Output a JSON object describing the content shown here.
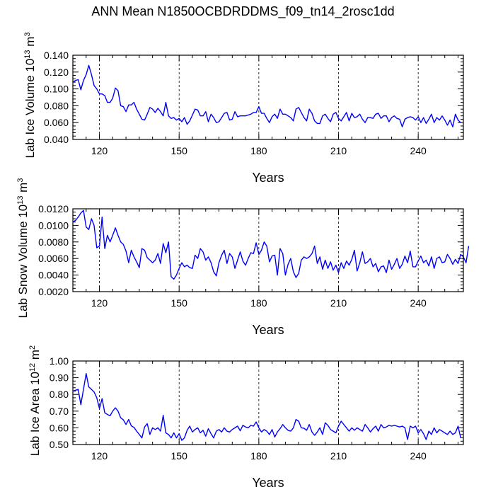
{
  "title": "ANN Mean N1850OCBDRDDMS_f09_tn14_2rosc1dd",
  "colors": {
    "line": "#0000ff",
    "frame": "#000000",
    "grid": "#000000"
  },
  "chart_data": [
    {
      "type": "line",
      "ylabel_main": "Lab Ice Volume 10",
      "ylabel_exp": "13",
      "ylabel_unit": "m",
      "ylabel_unit_exp": "3",
      "xlabel": "Years",
      "xlim": [
        110,
        257
      ],
      "ylim": [
        0.04,
        0.14
      ],
      "xticks": [
        120,
        150,
        180,
        210,
        240
      ],
      "xtick_labels": [
        "120",
        "150",
        "180",
        "210",
        "240"
      ],
      "yticks": [
        0.04,
        0.06,
        0.08,
        0.1,
        0.12,
        0.14
      ],
      "ytick_labels": [
        "0.040",
        "0.060",
        "0.080",
        "0.100",
        "0.120",
        "0.140"
      ],
      "grid": "vertical dashed at major x ticks",
      "series": [
        {
          "name": "Lab Ice Volume",
          "x_start": 110,
          "x_step": 1,
          "values": [
            0.108,
            0.11,
            0.111,
            0.099,
            0.11,
            0.117,
            0.128,
            0.117,
            0.104,
            0.1,
            0.094,
            0.094,
            0.092,
            0.084,
            0.084,
            0.089,
            0.101,
            0.098,
            0.08,
            0.079,
            0.073,
            0.081,
            0.081,
            0.084,
            0.076,
            0.07,
            0.064,
            0.063,
            0.07,
            0.078,
            0.076,
            0.072,
            0.077,
            0.073,
            0.068,
            0.084,
            0.068,
            0.065,
            0.066,
            0.063,
            0.065,
            0.061,
            0.066,
            0.058,
            0.062,
            0.069,
            0.076,
            0.075,
            0.068,
            0.068,
            0.073,
            0.061,
            0.07,
            0.066,
            0.06,
            0.061,
            0.066,
            0.071,
            0.072,
            0.063,
            0.064,
            0.073,
            0.067,
            0.068,
            0.068,
            0.068,
            0.069,
            0.07,
            0.072,
            0.072,
            0.079,
            0.071,
            0.071,
            0.065,
            0.06,
            0.067,
            0.07,
            0.065,
            0.076,
            0.07,
            0.07,
            0.068,
            0.066,
            0.062,
            0.076,
            0.078,
            0.072,
            0.066,
            0.062,
            0.076,
            0.071,
            0.062,
            0.059,
            0.059,
            0.068,
            0.07,
            0.065,
            0.061,
            0.07,
            0.072,
            0.065,
            0.062,
            0.067,
            0.072,
            0.062,
            0.071,
            0.066,
            0.067,
            0.07,
            0.064,
            0.06,
            0.066,
            0.066,
            0.065,
            0.07,
            0.071,
            0.065,
            0.068,
            0.068,
            0.061,
            0.066,
            0.068,
            0.065,
            0.064,
            0.055,
            0.064,
            0.066,
            0.067,
            0.066,
            0.063,
            0.067,
            0.06,
            0.066,
            0.059,
            0.064,
            0.07,
            0.06,
            0.066,
            0.063,
            0.068,
            0.063,
            0.057,
            0.063,
            0.055,
            0.07,
            0.063,
            0.06
          ]
        }
      ]
    },
    {
      "type": "line",
      "ylabel_main": "Lab Snow Volume 10",
      "ylabel_exp": "13",
      "ylabel_unit": "m",
      "ylabel_unit_exp": "3",
      "xlabel": "Years",
      "xlim": [
        110,
        257
      ],
      "ylim": [
        0.002,
        0.012
      ],
      "xticks": [
        120,
        150,
        180,
        210,
        240
      ],
      "xtick_labels": [
        "120",
        "150",
        "180",
        "210",
        "240"
      ],
      "yticks": [
        0.002,
        0.004,
        0.006,
        0.008,
        0.01,
        0.012
      ],
      "ytick_labels": [
        "0.0020",
        "0.0040",
        "0.0060",
        "0.0080",
        "0.0100",
        "0.0120"
      ],
      "grid": "vertical dashed at major x ticks",
      "series": [
        {
          "name": "Lab Snow Volume",
          "x_start": 110,
          "x_step": 1,
          "values": [
            0.0104,
            0.0106,
            0.011,
            0.0115,
            0.0118,
            0.0098,
            0.0095,
            0.0108,
            0.01,
            0.0073,
            0.0075,
            0.011,
            0.0072,
            0.0088,
            0.008,
            0.0088,
            0.0097,
            0.0088,
            0.008,
            0.0077,
            0.0069,
            0.0055,
            0.007,
            0.0062,
            0.0056,
            0.0049,
            0.0072,
            0.007,
            0.0061,
            0.0058,
            0.0055,
            0.0058,
            0.0066,
            0.0054,
            0.0078,
            0.0067,
            0.008,
            0.0038,
            0.0035,
            0.004,
            0.0048,
            0.0055,
            0.005,
            0.0052,
            0.0049,
            0.0048,
            0.0064,
            0.006,
            0.0072,
            0.0068,
            0.0058,
            0.0062,
            0.0055,
            0.0044,
            0.0039,
            0.0055,
            0.0064,
            0.007,
            0.0054,
            0.0066,
            0.0062,
            0.0048,
            0.0058,
            0.0068,
            0.0057,
            0.0052,
            0.006,
            0.0067,
            0.0066,
            0.0079,
            0.0065,
            0.007,
            0.008,
            0.0075,
            0.0056,
            0.0063,
            0.0064,
            0.004,
            0.0072,
            0.0066,
            0.004,
            0.0053,
            0.006,
            0.0044,
            0.0037,
            0.0042,
            0.0058,
            0.0062,
            0.006,
            0.0062,
            0.0066,
            0.0075,
            0.0054,
            0.0062,
            0.0047,
            0.0058,
            0.0048,
            0.0056,
            0.0046,
            0.0052,
            0.0043,
            0.0055,
            0.0048,
            0.0057,
            0.0052,
            0.0059,
            0.007,
            0.0045,
            0.0055,
            0.0068,
            0.0054,
            0.0056,
            0.006,
            0.005,
            0.0054,
            0.0044,
            0.005,
            0.0051,
            0.0043,
            0.0058,
            0.0047,
            0.0053,
            0.006,
            0.0048,
            0.0053,
            0.0063,
            0.0055,
            0.0069,
            0.005,
            0.005,
            0.0057,
            0.0063,
            0.0055,
            0.0058,
            0.0051,
            0.0062,
            0.0048,
            0.006,
            0.0062,
            0.0055,
            0.0056,
            0.0065,
            0.006,
            0.0053,
            0.0059,
            0.0054,
            0.0065,
            0.0062,
            0.0055,
            0.0075
          ]
        }
      ]
    },
    {
      "type": "line",
      "ylabel_main": "Lab Ice Area 10",
      "ylabel_exp": "12",
      "ylabel_unit": "m",
      "ylabel_unit_exp": "2",
      "xlabel": "Years",
      "xlim": [
        110,
        257
      ],
      "ylim": [
        0.5,
        1.0
      ],
      "xticks": [
        120,
        150,
        180,
        210,
        240
      ],
      "xtick_labels": [
        "120",
        "150",
        "180",
        "210",
        "240"
      ],
      "yticks": [
        0.5,
        0.6,
        0.7,
        0.8,
        0.9,
        1.0
      ],
      "ytick_labels": [
        "0.50",
        "0.60",
        "0.70",
        "0.80",
        "0.90",
        "1.00"
      ],
      "grid": "vertical dashed at major x ticks",
      "series": [
        {
          "name": "Lab Ice Area",
          "x_start": 110,
          "x_step": 1,
          "values": [
            0.82,
            0.825,
            0.83,
            0.738,
            0.83,
            0.925,
            0.845,
            0.83,
            0.815,
            0.78,
            0.715,
            0.775,
            0.69,
            0.68,
            0.672,
            0.7,
            0.72,
            0.7,
            0.66,
            0.648,
            0.62,
            0.65,
            0.612,
            0.603,
            0.58,
            0.56,
            0.54,
            0.605,
            0.625,
            0.56,
            0.6,
            0.59,
            0.6,
            0.58,
            0.675,
            0.57,
            0.56,
            0.54,
            0.57,
            0.54,
            0.565,
            0.525,
            0.54,
            0.585,
            0.61,
            0.575,
            0.59,
            0.6,
            0.57,
            0.585,
            0.55,
            0.595,
            0.565,
            0.54,
            0.58,
            0.59,
            0.575,
            0.6,
            0.58,
            0.575,
            0.59,
            0.6,
            0.61,
            0.582,
            0.615,
            0.605,
            0.6,
            0.615,
            0.61,
            0.635,
            0.6,
            0.575,
            0.59,
            0.58,
            0.56,
            0.59,
            0.545,
            0.575,
            0.595,
            0.62,
            0.6,
            0.585,
            0.58,
            0.6,
            0.65,
            0.64,
            0.6,
            0.598,
            0.585,
            0.62,
            0.575,
            0.555,
            0.575,
            0.6,
            0.56,
            0.63,
            0.615,
            0.59,
            0.58,
            0.57,
            0.61,
            0.64,
            0.62,
            0.6,
            0.58,
            0.6,
            0.585,
            0.6,
            0.59,
            0.58,
            0.62,
            0.6,
            0.575,
            0.595,
            0.61,
            0.58,
            0.62,
            0.6,
            0.605,
            0.615,
            0.61,
            0.615,
            0.61,
            0.605,
            0.61,
            0.6,
            0.53,
            0.61,
            0.6,
            0.61,
            0.57,
            0.59,
            0.565,
            0.53,
            0.58,
            0.56,
            0.6,
            0.57,
            0.59,
            0.58,
            0.57,
            0.56,
            0.58,
            0.56,
            0.57,
            0.61,
            0.54
          ]
        }
      ]
    }
  ]
}
